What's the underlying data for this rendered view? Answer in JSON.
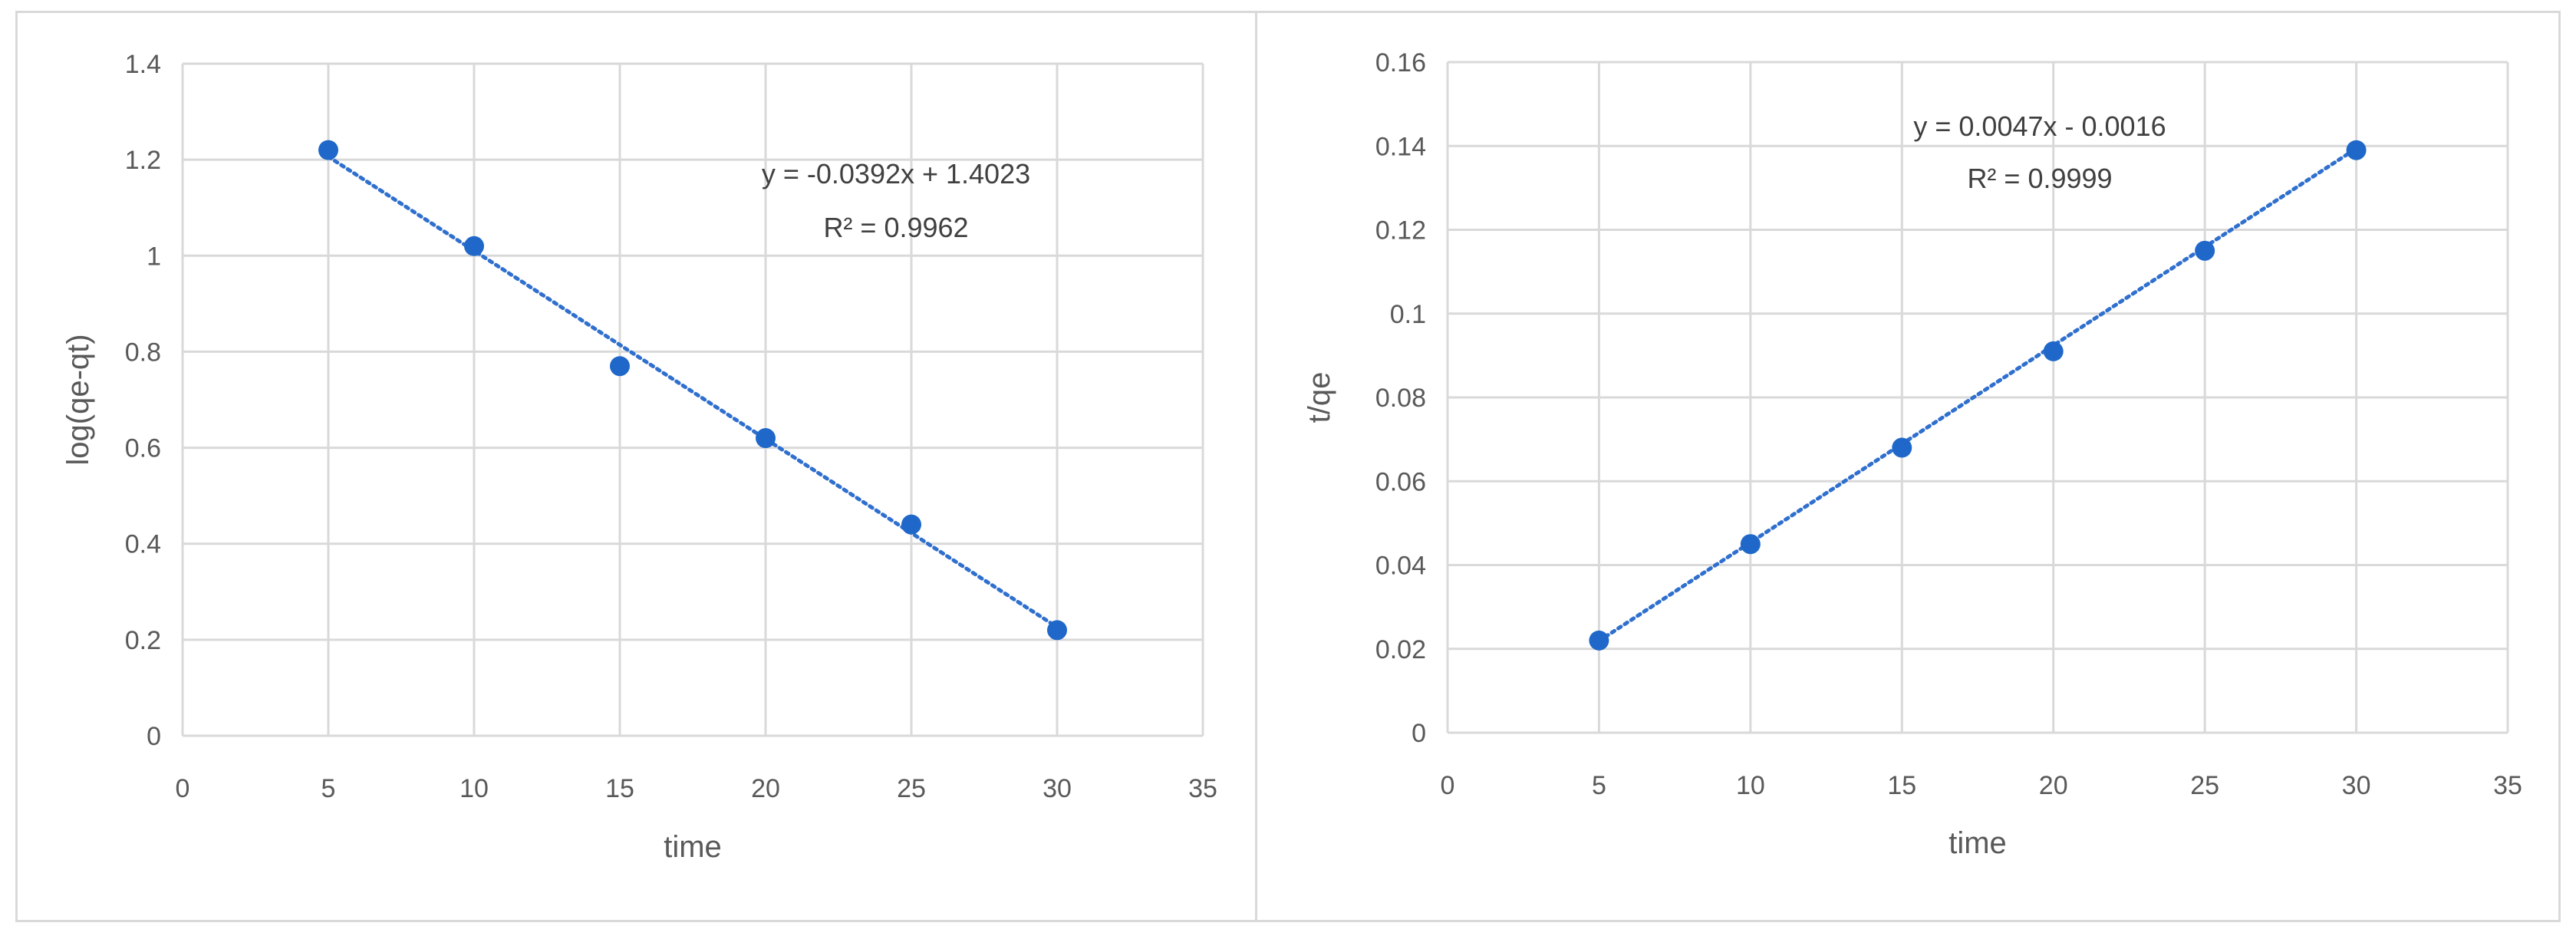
{
  "chart_data": [
    {
      "type": "scatter",
      "title": "",
      "xlabel": "time",
      "ylabel": "log(qe-qt)",
      "xlim": [
        0,
        35
      ],
      "ylim": [
        0,
        1.4
      ],
      "xticks": [
        0,
        5,
        10,
        15,
        20,
        25,
        30,
        35
      ],
      "yticks": [
        0,
        0.2,
        0.4,
        0.6,
        0.8,
        1,
        1.2,
        1.4
      ],
      "x_tick_labels": [
        "0",
        "5",
        "10",
        "15",
        "20",
        "25",
        "30",
        "35"
      ],
      "y_tick_labels": [
        "0",
        "0.2",
        "0.4",
        "0.6",
        "0.8",
        "1",
        "1.2",
        "1.4"
      ],
      "grid": true,
      "series": [
        {
          "x": [
            5,
            10,
            15,
            20,
            25,
            30
          ],
          "y": [
            1.22,
            1.02,
            0.77,
            0.62,
            0.44,
            0.22
          ],
          "color": "#1f68c9"
        }
      ],
      "trendline": {
        "type": "linear",
        "slope": -0.0392,
        "intercept": 1.4023,
        "x_range": [
          5,
          30
        ],
        "color": "#2f6fce",
        "style": "dotted"
      },
      "annotations": [
        "y = -0.0392x + 1.4023",
        "R² = 0.9962"
      ]
    },
    {
      "type": "scatter",
      "title": "",
      "xlabel": "time",
      "ylabel": "t/qe",
      "xlim": [
        0,
        35
      ],
      "ylim": [
        0,
        0.16
      ],
      "xticks": [
        0,
        5,
        10,
        15,
        20,
        25,
        30,
        35
      ],
      "yticks": [
        0,
        0.02,
        0.04,
        0.06,
        0.08,
        0.1,
        0.12,
        0.14,
        0.16
      ],
      "x_tick_labels": [
        "0",
        "5",
        "10",
        "15",
        "20",
        "25",
        "30",
        "35"
      ],
      "y_tick_labels": [
        "0",
        "0.02",
        "0.04",
        "0.06",
        "0.08",
        "0.1",
        "0.12",
        "0.14",
        "0.16"
      ],
      "grid": true,
      "series": [
        {
          "x": [
            5,
            10,
            15,
            20,
            25,
            30
          ],
          "y": [
            0.022,
            0.045,
            0.068,
            0.091,
            0.115,
            0.139
          ],
          "color": "#1f68c9"
        }
      ],
      "trendline": {
        "type": "linear",
        "slope": 0.0047,
        "intercept": -0.0016,
        "x_range": [
          5,
          30
        ],
        "color": "#2f6fce",
        "style": "dotted"
      },
      "annotations": [
        "y = 0.0047x - 0.0016",
        "R² = 0.9999"
      ]
    }
  ]
}
